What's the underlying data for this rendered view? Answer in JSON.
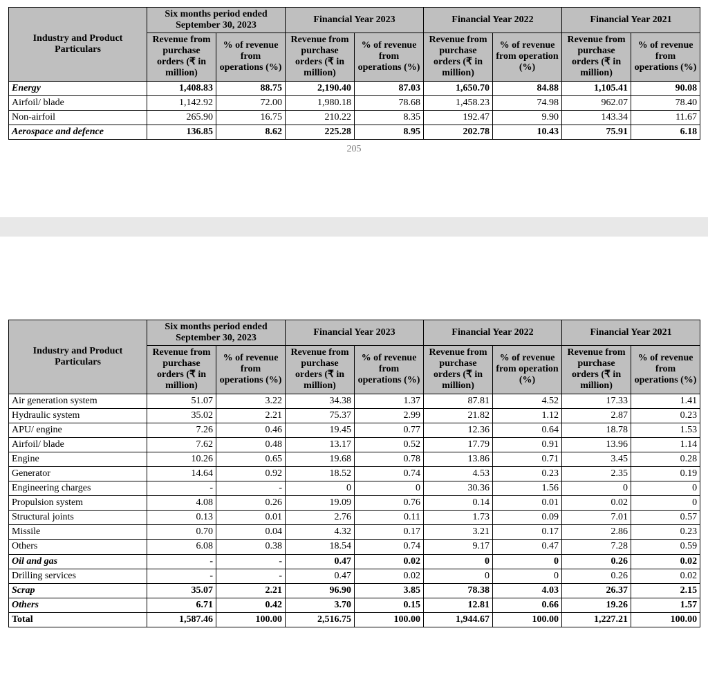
{
  "common_headers": {
    "rowhead": "Industry and Product Particulars",
    "periods": [
      "Six months period ended September 30, 2023",
      "Financial Year 2023",
      "Financial Year 2022",
      "Financial Year 2021"
    ],
    "sub_rev": "Revenue from purchase orders (₹ in million)",
    "sub_pct_ops": "% of revenue from operations (%)",
    "sub_pct_op": "% of revenue from operation (%)"
  },
  "page_number": "205",
  "table1": {
    "rows": [
      {
        "label": "Energy",
        "style": "bold italic",
        "vals": [
          "1,408.83",
          "88.75",
          "2,190.40",
          "87.03",
          "1,650.70",
          "84.88",
          "1,105.41",
          "90.08"
        ]
      },
      {
        "label": "Airfoil/ blade",
        "style": "",
        "vals": [
          "1,142.92",
          "72.00",
          "1,980.18",
          "78.68",
          "1,458.23",
          "74.98",
          "962.07",
          "78.40"
        ]
      },
      {
        "label": "Non-airfoil",
        "style": "",
        "vals": [
          "265.90",
          "16.75",
          "210.22",
          "8.35",
          "192.47",
          "9.90",
          "143.34",
          "11.67"
        ]
      },
      {
        "label": "Aerospace and defence",
        "style": "bold italic",
        "vals": [
          "136.85",
          "8.62",
          "225.28",
          "8.95",
          "202.78",
          "10.43",
          "75.91",
          "6.18"
        ]
      }
    ]
  },
  "table2": {
    "rows": [
      {
        "label": "Air generation system",
        "style": "",
        "vals": [
          "51.07",
          "3.22",
          "34.38",
          "1.37",
          "87.81",
          "4.52",
          "17.33",
          "1.41"
        ]
      },
      {
        "label": "Hydraulic system",
        "style": "",
        "vals": [
          "35.02",
          "2.21",
          "75.37",
          "2.99",
          "21.82",
          "1.12",
          "2.87",
          "0.23"
        ]
      },
      {
        "label": "APU/ engine",
        "style": "",
        "vals": [
          "7.26",
          "0.46",
          "19.45",
          "0.77",
          "12.36",
          "0.64",
          "18.78",
          "1.53"
        ]
      },
      {
        "label": "Airfoil/ blade",
        "style": "",
        "vals": [
          "7.62",
          "0.48",
          "13.17",
          "0.52",
          "17.79",
          "0.91",
          "13.96",
          "1.14"
        ]
      },
      {
        "label": "Engine",
        "style": "",
        "vals": [
          "10.26",
          "0.65",
          "19.68",
          "0.78",
          "13.86",
          "0.71",
          "3.45",
          "0.28"
        ]
      },
      {
        "label": "Generator",
        "style": "",
        "vals": [
          "14.64",
          "0.92",
          "18.52",
          "0.74",
          "4.53",
          "0.23",
          "2.35",
          "0.19"
        ]
      },
      {
        "label": "Engineering charges",
        "style": "",
        "vals": [
          "-",
          "-",
          "0",
          "0",
          "30.36",
          "1.56",
          "0",
          "0"
        ]
      },
      {
        "label": "Propulsion system",
        "style": "",
        "vals": [
          "4.08",
          "0.26",
          "19.09",
          "0.76",
          "0.14",
          "0.01",
          "0.02",
          "0"
        ]
      },
      {
        "label": "Structural joints",
        "style": "",
        "vals": [
          "0.13",
          "0.01",
          "2.76",
          "0.11",
          "1.73",
          "0.09",
          "7.01",
          "0.57"
        ]
      },
      {
        "label": "Missile",
        "style": "",
        "vals": [
          "0.70",
          "0.04",
          "4.32",
          "0.17",
          "3.21",
          "0.17",
          "2.86",
          "0.23"
        ]
      },
      {
        "label": "Others",
        "style": "",
        "vals": [
          "6.08",
          "0.38",
          "18.54",
          "0.74",
          "9.17",
          "0.47",
          "7.28",
          "0.59"
        ]
      },
      {
        "label": "Oil and gas",
        "style": "bold italic",
        "vals": [
          "-",
          "-",
          "0.47",
          "0.02",
          "0",
          "0",
          "0.26",
          "0.02"
        ]
      },
      {
        "label": "Drilling services",
        "style": "",
        "vals": [
          "-",
          "-",
          "0.47",
          "0.02",
          "0",
          "0",
          "0.26",
          "0.02"
        ]
      },
      {
        "label": "Scrap",
        "style": "bold italic",
        "vals": [
          "35.07",
          "2.21",
          "96.90",
          "3.85",
          "78.38",
          "4.03",
          "26.37",
          "2.15"
        ]
      },
      {
        "label": "Others",
        "style": "bold italic",
        "vals": [
          "6.71",
          "0.42",
          "3.70",
          "0.15",
          "12.81",
          "0.66",
          "19.26",
          "1.57"
        ]
      },
      {
        "label": "Total",
        "style": "bold",
        "vals": [
          "1,587.46",
          "100.00",
          "2,516.75",
          "100.00",
          "1,944.67",
          "100.00",
          "1,227.21",
          "100.00"
        ]
      }
    ]
  },
  "styling": {
    "header_bg": "#bfbfbf",
    "border_color": "#000000",
    "page_gap_bg": "#e8e8e8",
    "pagenum_color": "#7a7a7a",
    "font_family": "Times New Roman",
    "font_size_pt": 11
  }
}
